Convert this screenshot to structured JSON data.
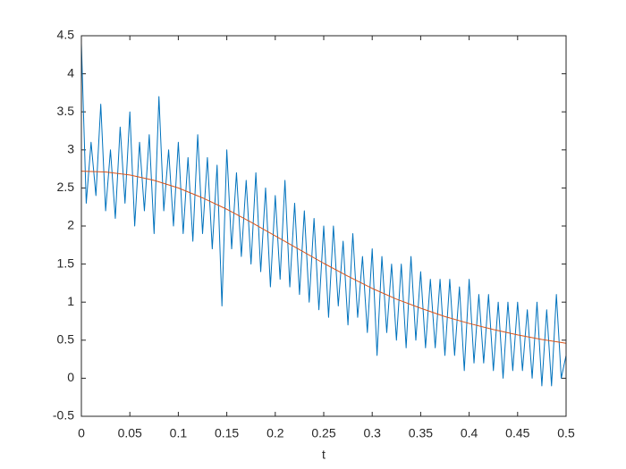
{
  "chart_data": {
    "type": "line",
    "xlabel": "t",
    "xlim": [
      0,
      0.5
    ],
    "xticks": [
      0,
      0.05,
      0.1,
      0.15,
      0.2,
      0.25,
      0.3,
      0.35,
      0.4,
      0.45,
      0.5
    ],
    "ylim": [
      -0.5,
      4.5
    ],
    "yticks": [
      -0.5,
      0,
      0.5,
      1,
      1.5,
      2,
      2.5,
      3,
      3.5,
      4,
      4.5
    ],
    "grid": false,
    "series": [
      {
        "color": "#0072BD",
        "x": [
          0,
          0.005,
          0.01,
          0.015,
          0.02,
          0.025,
          0.03,
          0.035,
          0.04,
          0.045,
          0.05,
          0.055,
          0.06,
          0.065,
          0.07,
          0.075,
          0.08,
          0.085,
          0.09,
          0.095,
          0.1,
          0.105,
          0.11,
          0.115,
          0.12,
          0.125,
          0.13,
          0.135,
          0.14,
          0.145,
          0.15,
          0.155,
          0.16,
          0.165,
          0.17,
          0.175,
          0.18,
          0.185,
          0.19,
          0.195,
          0.2,
          0.205,
          0.21,
          0.215,
          0.22,
          0.225,
          0.23,
          0.235,
          0.24,
          0.245,
          0.25,
          0.255,
          0.26,
          0.265,
          0.27,
          0.275,
          0.28,
          0.285,
          0.29,
          0.295,
          0.3,
          0.305,
          0.31,
          0.315,
          0.32,
          0.325,
          0.33,
          0.335,
          0.34,
          0.345,
          0.35,
          0.355,
          0.36,
          0.365,
          0.37,
          0.375,
          0.38,
          0.385,
          0.39,
          0.395,
          0.4,
          0.405,
          0.41,
          0.415,
          0.42,
          0.425,
          0.43,
          0.435,
          0.44,
          0.445,
          0.45,
          0.455,
          0.46,
          0.465,
          0.47,
          0.475,
          0.48,
          0.485,
          0.49,
          0.495,
          0.5
        ],
        "values": [
          4.4,
          2.3,
          3.1,
          2.4,
          3.6,
          2.2,
          3.0,
          2.1,
          3.3,
          2.3,
          3.5,
          2.0,
          3.1,
          2.2,
          3.2,
          1.9,
          3.7,
          2.2,
          3.0,
          2.0,
          3.1,
          1.9,
          2.9,
          1.8,
          3.2,
          1.9,
          2.9,
          1.7,
          2.8,
          0.95,
          3.0,
          1.7,
          2.7,
          1.6,
          2.6,
          1.5,
          2.7,
          1.4,
          2.5,
          1.2,
          2.4,
          1.3,
          2.6,
          1.2,
          2.3,
          1.1,
          2.2,
          1.0,
          2.1,
          0.9,
          2.0,
          0.8,
          2.0,
          0.95,
          1.8,
          0.7,
          1.9,
          0.8,
          1.6,
          0.6,
          1.7,
          0.3,
          1.6,
          0.6,
          1.5,
          0.5,
          1.5,
          0.4,
          1.6,
          0.5,
          1.4,
          0.4,
          1.3,
          0.4,
          1.3,
          0.3,
          1.3,
          0.3,
          1.2,
          0.1,
          1.3,
          0.2,
          1.1,
          0.2,
          1.1,
          0.1,
          1.0,
          0.0,
          1.0,
          0.1,
          1.0,
          0.1,
          0.9,
          0.0,
          1.0,
          -0.1,
          0.9,
          -0.1,
          1.1,
          0.0,
          0.3
        ]
      },
      {
        "color": "#D95319",
        "x": [
          0,
          0.025,
          0.05,
          0.075,
          0.1,
          0.125,
          0.15,
          0.175,
          0.2,
          0.225,
          0.25,
          0.275,
          0.3,
          0.325,
          0.35,
          0.375,
          0.4,
          0.425,
          0.45,
          0.475,
          0.5
        ],
        "values": [
          2.72,
          2.71,
          2.67,
          2.6,
          2.5,
          2.37,
          2.22,
          2.05,
          1.87,
          1.69,
          1.51,
          1.34,
          1.18,
          1.04,
          0.92,
          0.81,
          0.72,
          0.64,
          0.57,
          0.51,
          0.46
        ]
      }
    ]
  }
}
